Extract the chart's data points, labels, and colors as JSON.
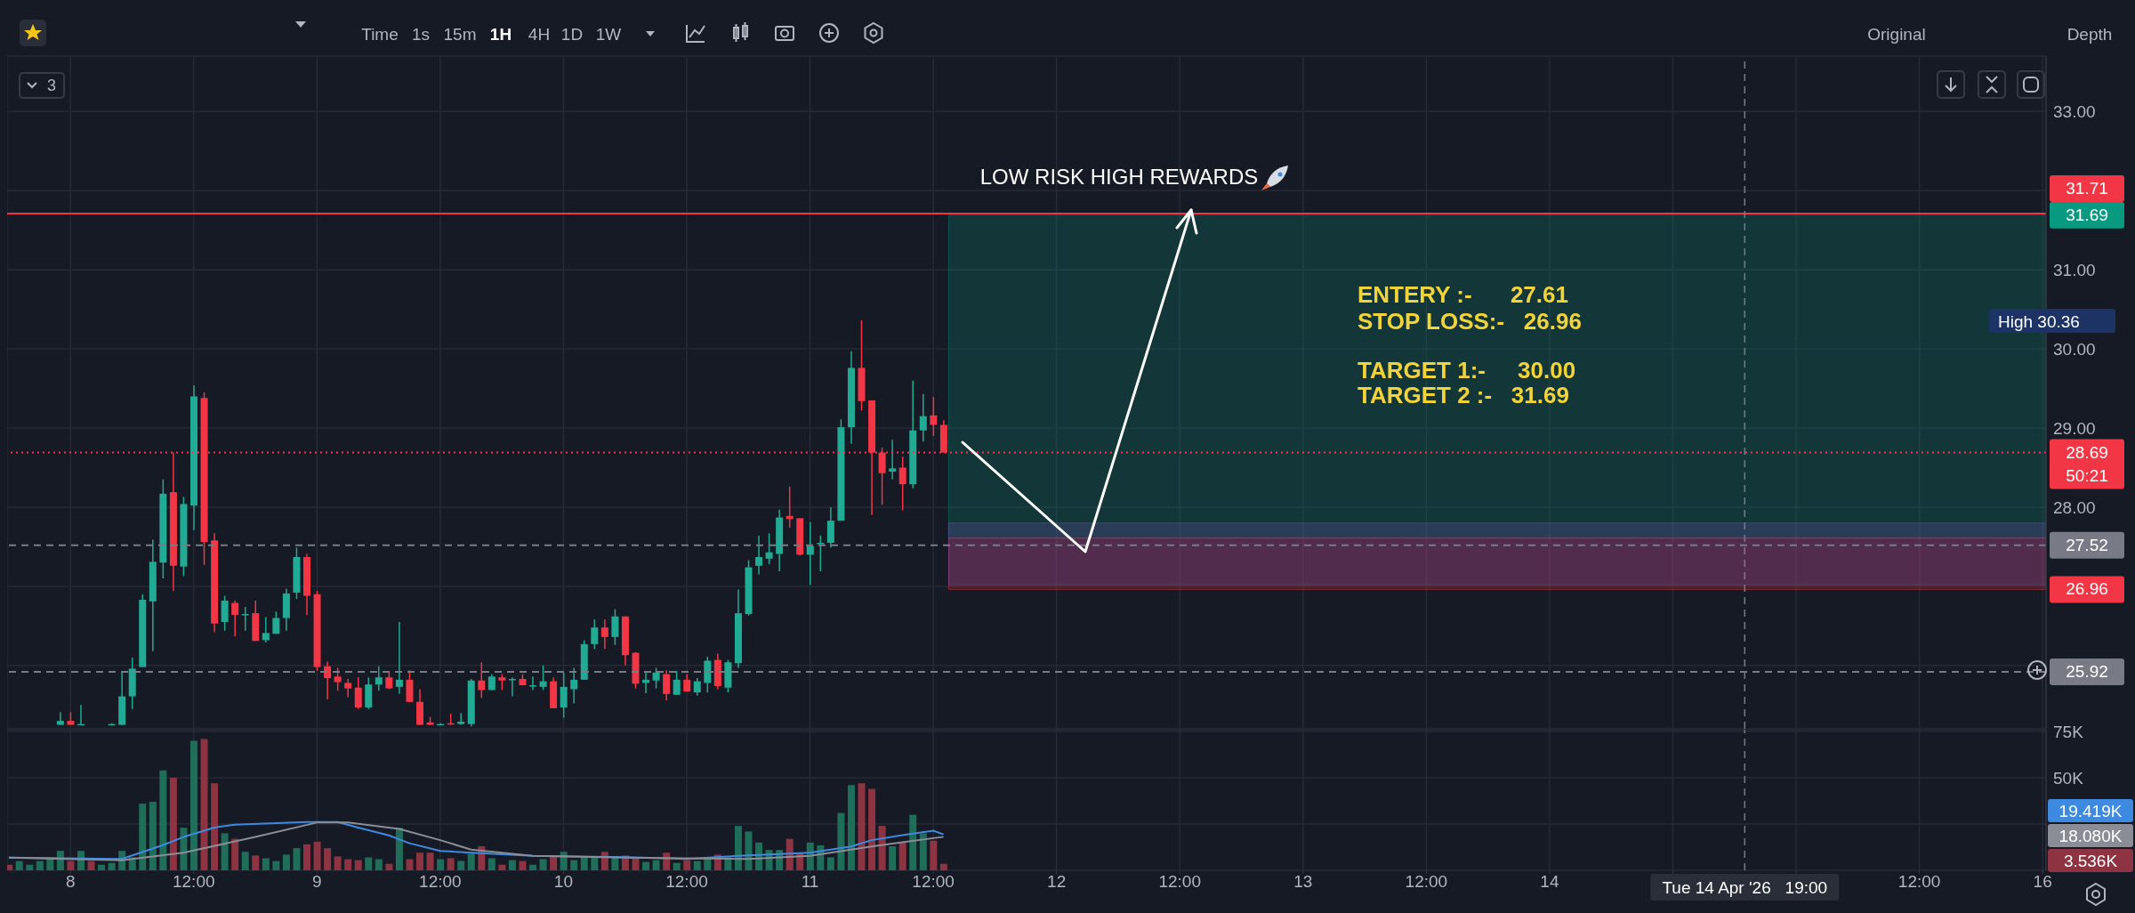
{
  "chart_data": [
    {
      "type": "candlestick",
      "x": [
        "2026-04-07T23:00",
        "2026-04-08T00:00",
        "2026-04-08T01:00",
        "2026-04-08T04:00",
        "2026-04-08T05:00",
        "2026-04-08T06:00",
        "2026-04-08T07:00",
        "2026-04-08T08:00",
        "2026-04-08T09:00",
        "2026-04-08T10:00",
        "2026-04-08T11:00",
        "2026-04-08T12:00",
        "2026-04-08T13:00",
        "2026-04-08T14:00",
        "2026-04-08T15:00",
        "2026-04-08T16:00",
        "2026-04-08T17:00",
        "2026-04-08T18:00",
        "2026-04-08T19:00",
        "2026-04-08T20:00",
        "2026-04-08T21:00",
        "2026-04-08T22:00",
        "2026-04-08T23:00",
        "2026-04-09T00:00",
        "2026-04-09T01:00",
        "2026-04-09T02:00",
        "2026-04-09T03:00",
        "2026-04-09T04:00",
        "2026-04-09T05:00",
        "2026-04-09T06:00",
        "2026-04-09T07:00",
        "2026-04-09T08:00",
        "2026-04-09T09:00",
        "2026-04-09T10:00",
        "2026-04-09T11:00",
        "2026-04-09T12:00",
        "2026-04-09T13:00",
        "2026-04-09T14:00",
        "2026-04-09T15:00",
        "2026-04-09T16:00",
        "2026-04-09T17:00",
        "2026-04-09T18:00",
        "2026-04-09T19:00",
        "2026-04-09T20:00",
        "2026-04-09T21:00",
        "2026-04-09T22:00",
        "2026-04-09T23:00",
        "2026-04-10T00:00",
        "2026-04-10T01:00",
        "2026-04-10T02:00",
        "2026-04-10T03:00",
        "2026-04-10T04:00",
        "2026-04-10T05:00",
        "2026-04-10T06:00",
        "2026-04-10T07:00",
        "2026-04-10T08:00",
        "2026-04-10T09:00",
        "2026-04-10T10:00",
        "2026-04-10T11:00",
        "2026-04-10T12:00",
        "2026-04-10T13:00",
        "2026-04-10T14:00",
        "2026-04-10T15:00",
        "2026-04-10T16:00",
        "2026-04-10T17:00",
        "2026-04-10T18:00",
        "2026-04-10T19:00",
        "2026-04-10T20:00",
        "2026-04-10T21:00",
        "2026-04-10T22:00",
        "2026-04-10T23:00",
        "2026-04-11T00:00",
        "2026-04-11T01:00",
        "2026-04-11T02:00",
        "2026-04-11T03:00",
        "2026-04-11T04:00",
        "2026-04-11T05:00",
        "2026-04-11T06:00",
        "2026-04-11T07:00",
        "2026-04-11T08:00",
        "2026-04-11T09:00",
        "2026-04-11T10:00",
        "2026-04-11T11:00",
        "2026-04-11T12:00",
        "2026-04-11T13:00"
      ],
      "ohlc": [
        [
          25.25,
          25.41,
          25.25,
          25.3
        ],
        [
          25.3,
          25.41,
          25.25,
          25.25
        ],
        [
          25.25,
          25.5,
          25.25,
          25.26
        ],
        [
          25.26,
          25.27,
          25.25,
          25.26
        ],
        [
          25.25,
          25.91,
          25.25,
          25.61
        ],
        [
          25.61,
          26.1,
          25.45,
          25.96
        ],
        [
          25.98,
          26.9,
          25.98,
          26.83
        ],
        [
          26.81,
          27.59,
          26.18,
          27.31
        ],
        [
          27.3,
          28.35,
          27.1,
          28.17
        ],
        [
          28.19,
          28.69,
          26.94,
          27.26
        ],
        [
          27.25,
          28.13,
          27.13,
          28.04
        ],
        [
          28.02,
          29.54,
          27.71,
          29.4
        ],
        [
          29.38,
          29.45,
          27.27,
          27.56
        ],
        [
          27.58,
          27.67,
          26.42,
          26.53
        ],
        [
          26.55,
          26.88,
          26.44,
          26.82
        ],
        [
          26.79,
          26.82,
          26.37,
          26.64
        ],
        [
          26.64,
          26.74,
          26.44,
          26.65
        ],
        [
          26.66,
          26.82,
          26.31,
          26.31
        ],
        [
          26.32,
          26.61,
          26.29,
          26.41
        ],
        [
          26.4,
          26.68,
          26.4,
          26.6
        ],
        [
          26.6,
          26.97,
          26.44,
          26.91
        ],
        [
          26.92,
          27.49,
          26.84,
          27.37
        ],
        [
          27.37,
          27.41,
          26.64,
          26.88
        ],
        [
          26.9,
          26.94,
          25.93,
          25.98
        ],
        [
          25.99,
          26.05,
          25.57,
          25.84
        ],
        [
          25.86,
          25.97,
          25.68,
          25.79
        ],
        [
          25.78,
          25.83,
          25.6,
          25.71
        ],
        [
          25.72,
          25.85,
          25.45,
          25.47
        ],
        [
          25.47,
          25.85,
          25.45,
          25.76
        ],
        [
          25.76,
          25.99,
          25.68,
          25.85
        ],
        [
          25.85,
          25.93,
          25.7,
          25.71
        ],
        [
          25.73,
          26.55,
          25.64,
          25.82
        ],
        [
          25.82,
          25.94,
          25.54,
          25.54
        ],
        [
          25.54,
          25.7,
          25.25,
          25.25
        ],
        [
          25.28,
          25.35,
          25.25,
          25.25
        ],
        [
          25.26,
          25.27,
          25.25,
          25.26
        ],
        [
          25.27,
          25.39,
          25.25,
          25.26
        ],
        [
          25.26,
          25.4,
          25.25,
          25.29
        ],
        [
          25.26,
          25.83,
          25.23,
          25.81
        ],
        [
          25.81,
          26.04,
          25.59,
          25.69
        ],
        [
          25.69,
          25.89,
          25.69,
          25.86
        ],
        [
          25.85,
          25.89,
          25.69,
          25.81
        ],
        [
          25.82,
          25.85,
          25.61,
          25.83
        ],
        [
          25.83,
          25.89,
          25.75,
          25.75
        ],
        [
          25.74,
          25.86,
          25.69,
          25.75
        ],
        [
          25.73,
          26.0,
          25.69,
          25.8
        ],
        [
          25.8,
          25.85,
          25.46,
          25.46
        ],
        [
          25.47,
          25.91,
          25.34,
          25.73
        ],
        [
          25.7,
          25.97,
          25.52,
          25.82
        ],
        [
          25.82,
          26.32,
          25.82,
          26.27
        ],
        [
          26.27,
          26.58,
          26.21,
          26.48
        ],
        [
          26.48,
          26.58,
          26.21,
          26.36
        ],
        [
          26.36,
          26.71,
          26.26,
          26.62
        ],
        [
          26.62,
          26.62,
          26.0,
          26.13
        ],
        [
          26.16,
          26.17,
          25.71,
          25.77
        ],
        [
          25.78,
          25.93,
          25.65,
          25.82
        ],
        [
          25.81,
          25.97,
          25.71,
          25.91
        ],
        [
          25.89,
          25.94,
          25.56,
          25.64
        ],
        [
          25.63,
          25.93,
          25.63,
          25.82
        ],
        [
          25.82,
          25.89,
          25.67,
          25.67
        ],
        [
          25.66,
          25.84,
          25.62,
          25.8
        ],
        [
          25.78,
          26.11,
          25.66,
          26.06
        ],
        [
          26.07,
          26.15,
          25.7,
          25.74
        ],
        [
          25.72,
          26.07,
          25.66,
          26.04
        ],
        [
          26.03,
          26.96,
          25.97,
          26.66
        ],
        [
          26.65,
          27.33,
          26.63,
          27.24
        ],
        [
          27.26,
          27.64,
          27.15,
          27.37
        ],
        [
          27.35,
          27.67,
          27.28,
          27.43
        ],
        [
          27.41,
          27.97,
          27.19,
          27.87
        ],
        [
          27.89,
          28.26,
          27.74,
          27.85
        ],
        [
          27.86,
          27.86,
          27.39,
          27.4
        ],
        [
          27.4,
          27.81,
          27.02,
          27.51
        ],
        [
          27.54,
          27.64,
          27.19,
          27.55
        ],
        [
          27.55,
          28.0,
          27.49,
          27.83
        ],
        [
          27.83,
          29.11,
          27.83,
          29.01
        ],
        [
          29.01,
          29.97,
          28.8,
          29.76
        ],
        [
          29.76,
          30.36,
          29.22,
          29.34
        ],
        [
          29.35,
          29.35,
          27.9,
          28.69
        ],
        [
          28.69,
          28.75,
          28.03,
          28.43
        ],
        [
          28.45,
          28.85,
          28.35,
          28.49
        ],
        [
          28.5,
          28.64,
          27.96,
          28.29
        ],
        [
          28.29,
          29.6,
          28.24,
          28.97
        ],
        [
          28.97,
          29.43,
          28.83,
          29.15
        ],
        [
          29.16,
          29.39,
          28.9,
          29.04
        ],
        [
          29.04,
          29.1,
          28.69,
          28.69
        ]
      ],
      "xlim": [
        "2026-04-07T17:50",
        "2026-04-16T00:20"
      ],
      "xticks": [
        "2026-04-08",
        "2026-04-08T12:00",
        "2026-04-09",
        "2026-04-09T12:00",
        "2026-04-10",
        "2026-04-10T12:00",
        "2026-04-11",
        "2026-04-11T12:00",
        "2026-04-12",
        "2026-04-12T12:00",
        "2026-04-13",
        "2026-04-13T12:00",
        "2026-04-14",
        "2026-04-14T12:00",
        "2026-04-15",
        "2026-04-15T12:00",
        "2026-04-16"
      ],
      "ylim": [
        25.2,
        33.7
      ],
      "yticks": [
        {
          "value": 26,
          "label": null
        },
        {
          "value": 27,
          "label": null
        },
        {
          "value": 28,
          "label": "28.00"
        },
        {
          "value": 29,
          "label": "29.00"
        },
        {
          "value": 30,
          "label": "30.00"
        },
        {
          "value": 31,
          "label": "31.00"
        },
        {
          "value": 32,
          "label": null
        },
        {
          "value": 33,
          "label": "33.00"
        }
      ],
      "grid": true,
      "tick_labels": "y",
      "ref_lines": [
        {
          "axis": "y",
          "value": 31.71,
          "label": "31.71",
          "color": "#f23645"
        },
        {
          "axis": "y",
          "value": 28.69,
          "label": "28.69\n50:21",
          "color": "#f23645",
          "line_style": "dotted"
        },
        {
          "axis": "y",
          "value": 27.52,
          "label": "27.52",
          "color": "#787b86",
          "line_style": "dashed"
        },
        {
          "axis": "y",
          "value": 25.92,
          "label": "25.92",
          "color": "#787b86",
          "line_style": "dashed"
        },
        {
          "axis": "x",
          "value": "2026-04-14T19:00",
          "color": "#787b86",
          "line_style": "dashed"
        }
      ],
      "bands": [
        {
          "axis": "y",
          "from": 31.69,
          "to": 27.61,
          "label": "31.69",
          "color": "#089981"
        },
        {
          "axis": "y",
          "from": 26.96,
          "to": 27.61,
          "label": "26.96",
          "color": "#f23645"
        },
        {
          "axis": "y",
          "from": 27.8,
          "to": 27.02,
          "color": "#7e57c2"
        }
      ],
      "annotations": [
        "LOW RISK HIGH REWARDS",
        "ENTERY :-      27.61",
        "STOP LOSS:-   26.96",
        "TARGET 1:-     30.00",
        "TARGET 2 :-   31.69",
        "3",
        "Time",
        "1s",
        "15m",
        "1H",
        "4H",
        "1D",
        "1W",
        "Original",
        "Depth",
        "High 30.36"
      ]
    },
    {
      "type": "bar",
      "series": [
        {
          "x": [
            "2026-04-07T18:00",
            "2026-04-07T19:00",
            "2026-04-07T20:00",
            "2026-04-07T21:00",
            "2026-04-07T22:00",
            "2026-04-07T23:00",
            "2026-04-08T00:00",
            "2026-04-08T01:00",
            "2026-04-08T02:00",
            "2026-04-08T03:00",
            "2026-04-08T04:00",
            "2026-04-08T05:00",
            "2026-04-08T06:00",
            "2026-04-08T07:00",
            "2026-04-08T08:00",
            "2026-04-08T09:00",
            "2026-04-08T10:00",
            "2026-04-08T11:00",
            "2026-04-08T12:00",
            "2026-04-08T13:00",
            "2026-04-08T14:00",
            "2026-04-08T15:00",
            "2026-04-08T16:00",
            "2026-04-08T17:00",
            "2026-04-08T18:00",
            "2026-04-08T19:00",
            "2026-04-08T20:00",
            "2026-04-08T21:00",
            "2026-04-08T22:00",
            "2026-04-08T23:00",
            "2026-04-09T00:00",
            "2026-04-09T01:00",
            "2026-04-09T02:00",
            "2026-04-09T03:00",
            "2026-04-09T04:00",
            "2026-04-09T05:00",
            "2026-04-09T06:00",
            "2026-04-09T07:00",
            "2026-04-09T08:00",
            "2026-04-09T09:00",
            "2026-04-09T10:00",
            "2026-04-09T11:00",
            "2026-04-09T12:00",
            "2026-04-09T13:00",
            "2026-04-09T14:00",
            "2026-04-09T15:00",
            "2026-04-09T16:00",
            "2026-04-09T17:00",
            "2026-04-09T18:00",
            "2026-04-09T19:00",
            "2026-04-09T20:00",
            "2026-04-09T21:00",
            "2026-04-09T22:00",
            "2026-04-09T23:00",
            "2026-04-10T00:00",
            "2026-04-10T01:00",
            "2026-04-10T02:00",
            "2026-04-10T03:00",
            "2026-04-10T04:00",
            "2026-04-10T05:00",
            "2026-04-10T06:00",
            "2026-04-10T07:00",
            "2026-04-10T08:00",
            "2026-04-10T09:00",
            "2026-04-10T10:00",
            "2026-04-10T11:00",
            "2026-04-10T12:00",
            "2026-04-10T13:00",
            "2026-04-10T14:00",
            "2026-04-10T15:00",
            "2026-04-10T16:00",
            "2026-04-10T17:00",
            "2026-04-10T18:00",
            "2026-04-10T19:00",
            "2026-04-10T20:00",
            "2026-04-10T21:00",
            "2026-04-10T22:00",
            "2026-04-10T23:00",
            "2026-04-11T00:00",
            "2026-04-11T01:00",
            "2026-04-11T02:00",
            "2026-04-11T03:00",
            "2026-04-11T04:00",
            "2026-04-11T05:00",
            "2026-04-11T06:00",
            "2026-04-11T07:00",
            "2026-04-11T08:00",
            "2026-04-11T09:00",
            "2026-04-11T10:00",
            "2026-04-11T11:00",
            "2026-04-11T12:00",
            "2026-04-11T13:00"
          ],
          "values": [
            3,
            5,
            3,
            5,
            7,
            10.5,
            5,
            10.5,
            5,
            3,
            4,
            10.5,
            7,
            36,
            37,
            54,
            50,
            23,
            70,
            71,
            47,
            20,
            17,
            10,
            8,
            6.5,
            5,
            8.5,
            12,
            14,
            15.5,
            12,
            7.5,
            6,
            5.5,
            7,
            6,
            3.5,
            23,
            6,
            9.5,
            9.5,
            6,
            6.5,
            5,
            9,
            13,
            6.5,
            3,
            5.5,
            5,
            3,
            6,
            7.5,
            10,
            5.5,
            7.5,
            7.5,
            10,
            7.5,
            8,
            7,
            4.5,
            5.5,
            9.5,
            4,
            5.5,
            5,
            7,
            8.5,
            7,
            24,
            21,
            15,
            11,
            11,
            17,
            9,
            15,
            13.5,
            7,
            31,
            46,
            47,
            44,
            24,
            13,
            15,
            30,
            20,
            16,
            3.5
          ],
          "colors": [
            "#8e3341",
            "#1f6e5a",
            "#1f6e5a",
            "#1f6e5a",
            "#1f6e5a",
            "#1f6e5a",
            "#8e3341",
            "#1f6e5a",
            "#8e3341",
            "#1f6e5a",
            "#1f6e5a",
            "#1f6e5a",
            "#1f6e5a",
            "#1f6e5a",
            "#1f6e5a",
            "#1f6e5a",
            "#8e3341",
            "#1f6e5a",
            "#1f6e5a",
            "#8e3341",
            "#8e3341",
            "#1f6e5a",
            "#8e3341",
            "#1f6e5a",
            "#8e3341",
            "#1f6e5a",
            "#1f6e5a",
            "#1f6e5a",
            "#1f6e5a",
            "#8e3341",
            "#8e3341",
            "#8e3341",
            "#8e3341",
            "#8e3341",
            "#8e3341",
            "#1f6e5a",
            "#1f6e5a",
            "#8e3341",
            "#1f6e5a",
            "#8e3341",
            "#8e3341",
            "#8e3341",
            "#1f6e5a",
            "#8e3341",
            "#1f6e5a",
            "#1f6e5a",
            "#8e3341",
            "#1f6e5a",
            "#8e3341",
            "#1f6e5a",
            "#8e3341",
            "#1f6e5a",
            "#1f6e5a",
            "#8e3341",
            "#1f6e5a",
            "#1f6e5a",
            "#1f6e5a",
            "#1f6e5a",
            "#8e3341",
            "#1f6e5a",
            "#8e3341",
            "#8e3341",
            "#1f6e5a",
            "#1f6e5a",
            "#8e3341",
            "#1f6e5a",
            "#8e3341",
            "#1f6e5a",
            "#1f6e5a",
            "#8e3341",
            "#1f6e5a",
            "#1f6e5a",
            "#1f6e5a",
            "#1f6e5a",
            "#1f6e5a",
            "#1f6e5a",
            "#8e3341",
            "#8e3341",
            "#1f6e5a",
            "#1f6e5a",
            "#1f6e5a",
            "#1f6e5a",
            "#1f6e5a",
            "#8e3341",
            "#8e3341",
            "#8e3341",
            "#1f6e5a",
            "#8e3341",
            "#1f6e5a",
            "#1f6e5a",
            "#8e3341",
            "#8e3341"
          ]
        },
        {
          "type": "line",
          "color": "#3d8ae0",
          "x": [
            "2026-04-07T18:00",
            "2026-04-08T05:00",
            "2026-04-08T09:00",
            "2026-04-08T11:00",
            "2026-04-08T14:00",
            "2026-04-08T16:00",
            "2026-04-08T23:00",
            "2026-04-09T02:00",
            "2026-04-09T04:00",
            "2026-04-09T07:00",
            "2026-04-09T09:00",
            "2026-04-09T12:00",
            "2026-04-09T15:00",
            "2026-04-09T21:00",
            "2026-04-10T06:00",
            "2026-04-10T12:00",
            "2026-04-10T17:00",
            "2026-04-11T00:00",
            "2026-04-11T04:00",
            "2026-04-11T06:00",
            "2026-04-11T09:00",
            "2026-04-11T12:00",
            "2026-04-11T13:00"
          ],
          "values": [
            6.8,
            6.1,
            13.6,
            18,
            23.1,
            24.7,
            26.1,
            26.1,
            23.1,
            18.9,
            14.6,
            10.5,
            9.5,
            7.8,
            7.1,
            6.1,
            7.8,
            9.5,
            12.9,
            16.3,
            19,
            21.4,
            19.4
          ]
        },
        {
          "type": "line",
          "color": "#8a8d96",
          "x": [
            "2026-04-07T18:00",
            "2026-04-08T05:00",
            "2026-04-08T11:00",
            "2026-04-08T18:00",
            "2026-04-09T00:00",
            "2026-04-09T03:00",
            "2026-04-09T08:00",
            "2026-04-09T12:00",
            "2026-04-09T15:00",
            "2026-04-09T21:00",
            "2026-04-10T06:00",
            "2026-04-10T18:00",
            "2026-04-11T00:00",
            "2026-04-11T06:00",
            "2026-04-11T13:00"
          ],
          "values": [
            6.8,
            5.4,
            9.5,
            18,
            25.8,
            25.8,
            22.4,
            16.3,
            11.2,
            7.8,
            6.8,
            6.1,
            7.8,
            12.9,
            18.1
          ]
        }
      ],
      "xlim": [
        "2026-04-07T17:50",
        "2026-04-16T00:20"
      ],
      "xticks": [
        {
          "value": "2026-04-08",
          "label": "8"
        },
        {
          "value": "2026-04-08T12:00",
          "label": "12:00"
        },
        {
          "value": "2026-04-09",
          "label": "9"
        },
        {
          "value": "2026-04-09T12:00",
          "label": "12:00"
        },
        {
          "value": "2026-04-10",
          "label": "10"
        },
        {
          "value": "2026-04-10T12:00",
          "label": "12:00"
        },
        {
          "value": "2026-04-11",
          "label": "11"
        },
        {
          "value": "2026-04-11T12:00",
          "label": "12:00"
        },
        {
          "value": "2026-04-12",
          "label": "12"
        },
        {
          "value": "2026-04-12T12:00",
          "label": "12:00"
        },
        {
          "value": "2026-04-13",
          "label": "13"
        },
        {
          "value": "2026-04-13T12:00",
          "label": "12:00"
        },
        {
          "value": "2026-04-14",
          "label": "14"
        },
        {
          "value": "2026-04-14T12:00",
          "label": null
        },
        {
          "value": "2026-04-15",
          "label": null
        },
        {
          "value": "2026-04-15T12:00",
          "label": "12:00"
        },
        {
          "value": "2026-04-16",
          "label": "16"
        }
      ],
      "ylim": [
        0,
        76
      ],
      "yticks": [
        {
          "value": 25,
          "label": null
        },
        {
          "value": 50,
          "label": "50K"
        },
        {
          "value": 75,
          "label": "75K"
        }
      ],
      "grid": true,
      "ref_lines": [
        {
          "axis": "x",
          "value": "2026-04-14T19:00",
          "label": "Tue 14 Apr '26   19:00",
          "color": "#787b86",
          "line_style": "dashed"
        }
      ],
      "annotations": [
        "19.419K",
        "18.080K",
        "3.536K"
      ]
    }
  ]
}
